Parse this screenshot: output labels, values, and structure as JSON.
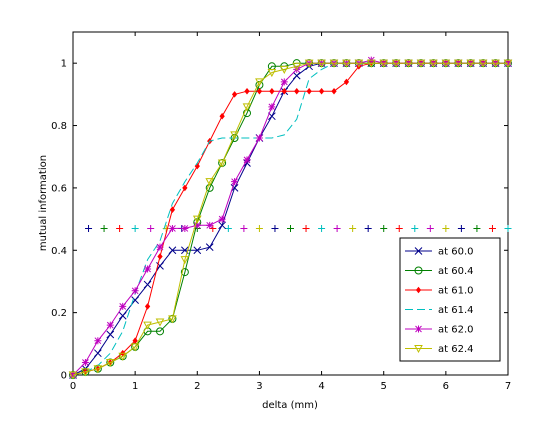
{
  "chart_data": {
    "type": "line",
    "xlabel": "delta (mm)",
    "ylabel": "mutual information",
    "xlim": [
      0,
      7
    ],
    "ylim": [
      0,
      1.1
    ],
    "xticks": [
      0,
      1,
      2,
      3,
      4,
      5,
      6,
      7
    ],
    "yticks": [
      0,
      0.2,
      0.4,
      0.6,
      0.8,
      1
    ],
    "grid": false,
    "legend_position": "lower-right",
    "x": [
      0,
      0.2,
      0.4,
      0.6,
      0.8,
      1.0,
      1.2,
      1.4,
      1.6,
      1.8,
      2.0,
      2.2,
      2.4,
      2.6,
      2.8,
      3.0,
      3.2,
      3.4,
      3.6,
      3.8,
      4.0,
      4.2,
      4.4,
      4.6,
      4.8,
      5.0,
      5.2,
      5.4,
      5.6,
      5.8,
      6.0,
      6.2,
      6.4,
      6.6,
      6.8,
      7.0
    ],
    "series": [
      {
        "name": "at 60.0",
        "color": "#00008b",
        "marker": "x",
        "dash": "",
        "values": [
          0.0,
          0.02,
          0.07,
          0.13,
          0.19,
          0.24,
          0.29,
          0.35,
          0.4,
          0.4,
          0.4,
          0.41,
          0.48,
          0.6,
          0.68,
          0.76,
          0.83,
          0.91,
          0.96,
          0.99,
          1.0,
          1.0,
          1.0,
          1.0,
          1.0,
          1.0,
          1.0,
          1.0,
          1.0,
          1.0,
          1.0,
          1.0,
          1.0,
          1.0,
          1.0,
          1.0
        ]
      },
      {
        "name": "at 60.4",
        "color": "#008000",
        "marker": "o",
        "dash": "",
        "values": [
          0.0,
          0.01,
          0.02,
          0.04,
          0.06,
          0.09,
          0.14,
          0.14,
          0.18,
          0.33,
          0.49,
          0.6,
          0.68,
          0.76,
          0.84,
          0.93,
          0.99,
          0.99,
          1.0,
          1.0,
          1.0,
          1.0,
          1.0,
          1.0,
          1.0,
          1.0,
          1.0,
          1.0,
          1.0,
          1.0,
          1.0,
          1.0,
          1.0,
          1.0,
          1.0,
          1.0
        ]
      },
      {
        "name": "at 61.0",
        "color": "#ff0000",
        "marker": "d",
        "dash": "",
        "values": [
          0.0,
          0.01,
          0.02,
          0.04,
          0.07,
          0.11,
          0.22,
          0.38,
          0.53,
          0.6,
          0.67,
          0.75,
          0.83,
          0.9,
          0.91,
          0.91,
          0.91,
          0.91,
          0.91,
          0.91,
          0.91,
          0.91,
          0.94,
          0.99,
          1.0,
          1.0,
          1.0,
          1.0,
          1.0,
          1.0,
          1.0,
          1.0,
          1.0,
          1.0,
          1.0,
          1.0
        ]
      },
      {
        "name": "at 61.4",
        "color": "#00bfbf",
        "marker": "none",
        "dash": "8,4",
        "values": [
          0.0,
          0.01,
          0.03,
          0.07,
          0.14,
          0.26,
          0.37,
          0.43,
          0.55,
          0.62,
          0.68,
          0.75,
          0.76,
          0.76,
          0.76,
          0.76,
          0.76,
          0.77,
          0.82,
          0.95,
          0.98,
          1.0,
          1.0,
          1.0,
          1.0,
          1.0,
          1.0,
          1.0,
          1.0,
          1.0,
          1.0,
          1.0,
          1.0,
          1.0,
          1.0,
          1.0
        ]
      },
      {
        "name": "at 62.0",
        "color": "#bf00bf",
        "marker": "*",
        "dash": "",
        "values": [
          0.0,
          0.04,
          0.11,
          0.16,
          0.22,
          0.27,
          0.34,
          0.41,
          0.47,
          0.47,
          0.48,
          0.48,
          0.5,
          0.62,
          0.69,
          0.76,
          0.86,
          0.94,
          0.98,
          1.0,
          1.0,
          1.0,
          1.0,
          1.0,
          1.01,
          1.0,
          1.0,
          1.0,
          1.0,
          1.0,
          1.0,
          1.0,
          1.0,
          1.0,
          1.0,
          1.0
        ]
      },
      {
        "name": "at 62.4",
        "color": "#bfbf00",
        "marker": "v",
        "dash": "",
        "values": [
          0.0,
          0.01,
          0.02,
          0.04,
          0.06,
          0.09,
          0.16,
          0.17,
          0.18,
          0.37,
          0.5,
          0.62,
          0.68,
          0.77,
          0.86,
          0.94,
          0.97,
          0.98,
          0.99,
          1.0,
          1.0,
          1.0,
          1.0,
          1.0,
          1.0,
          1.0,
          1.0,
          1.0,
          1.0,
          1.0,
          1.0,
          1.0,
          1.0,
          1.0,
          1.0,
          1.0
        ]
      }
    ],
    "reference_line": {
      "y": 0.47,
      "x": [
        0.25,
        0.5,
        0.75,
        1.0,
        1.25,
        1.5,
        1.75,
        2.0,
        2.25,
        2.5,
        2.75,
        3.0,
        3.25,
        3.5,
        3.75,
        4.0,
        4.25,
        4.5,
        4.75,
        5.0,
        5.25,
        5.5,
        5.75,
        6.0,
        6.25,
        6.5,
        6.75,
        7.0
      ],
      "marker": "+",
      "colors": [
        "#00008b",
        "#008000",
        "#ff0000",
        "#00bfbf",
        "#bf00bf",
        "#bfbf00"
      ]
    }
  }
}
